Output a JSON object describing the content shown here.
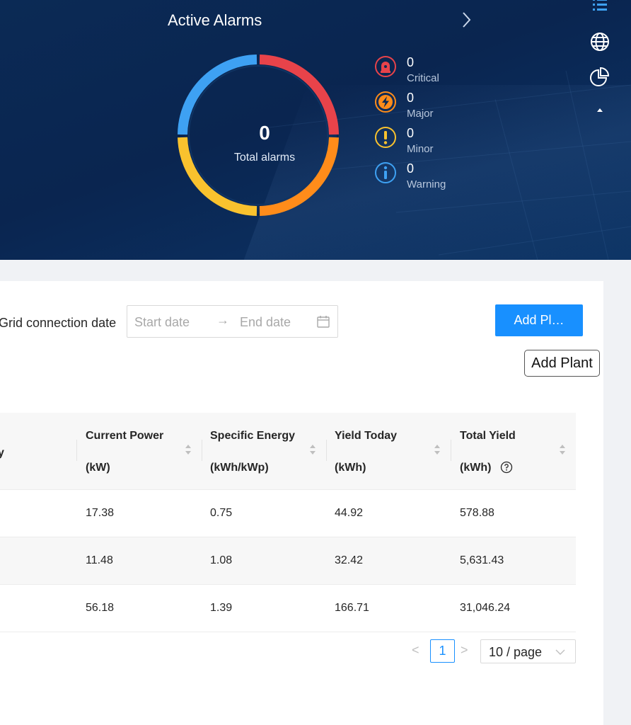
{
  "alarms": {
    "title": "Active Alarms",
    "total": "0",
    "total_label": "Total alarms",
    "colors": {
      "critical": "#e8434a",
      "major": "#ff8c1a",
      "minor": "#f9c22e",
      "warning": "#3ea1f3"
    },
    "items": [
      {
        "key": "critical",
        "count": "0",
        "label": "Critical",
        "icon": "alarm-light-icon"
      },
      {
        "key": "major",
        "count": "0",
        "label": "Major",
        "icon": "lightning-icon"
      },
      {
        "key": "minor",
        "count": "0",
        "label": "Minor",
        "icon": "exclamation-icon"
      },
      {
        "key": "warning",
        "count": "0",
        "label": "Warning",
        "icon": "info-icon"
      }
    ]
  },
  "side_icons": [
    "list-icon",
    "globe-icon",
    "pie-chart-icon",
    "caret-up-icon"
  ],
  "filters": {
    "grid_connection_label": "Grid connection date",
    "start_placeholder": "Start date",
    "arrow": "→",
    "end_placeholder": "End date"
  },
  "add_button": {
    "label": "Add Pl…",
    "tooltip": "Add Plant"
  },
  "table": {
    "partial_header": "y",
    "columns": [
      {
        "line1": "Current Power",
        "line2": "(kW)"
      },
      {
        "line1": "Specific Energy",
        "line2": "(kWh/kWp)"
      },
      {
        "line1": "Yield Today",
        "line2": "(kWh)"
      },
      {
        "line1": "Total Yield",
        "line2": "(kWh)"
      }
    ],
    "rows": [
      [
        "17.38",
        "0.75",
        "44.92",
        "578.88"
      ],
      [
        "11.48",
        "1.08",
        "32.42",
        "5,631.43"
      ],
      [
        "56.18",
        "1.39",
        "166.71",
        "31,046.24"
      ]
    ]
  },
  "pagination": {
    "prev": "<",
    "page": "1",
    "next": ">",
    "page_size": "10 / page"
  }
}
